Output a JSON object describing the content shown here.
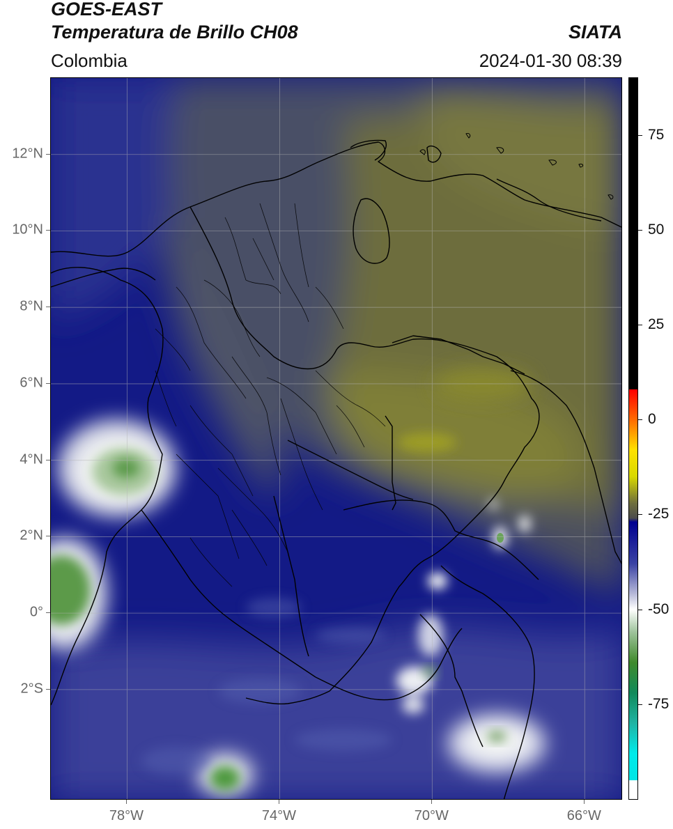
{
  "header": {
    "satellite": "GOES-EAST",
    "product": "Temperatura de Brillo CH08",
    "region": "Colombia",
    "brand": "SIATA",
    "timestamp": "2024-01-30 08:39"
  },
  "map": {
    "lon_range": [
      -80,
      -65
    ],
    "lat_range": [
      -4.9,
      14
    ],
    "lat_ticks": [
      {
        "value": 12,
        "label": "12°N"
      },
      {
        "value": 10,
        "label": "10°N"
      },
      {
        "value": 8,
        "label": "8°N"
      },
      {
        "value": 6,
        "label": "6°N"
      },
      {
        "value": 4,
        "label": "4°N"
      },
      {
        "value": 2,
        "label": "2°N"
      },
      {
        "value": 0,
        "label": "0°"
      },
      {
        "value": -2,
        "label": "2°S"
      }
    ],
    "lon_ticks": [
      {
        "value": -78,
        "label": "78°W"
      },
      {
        "value": -74,
        "label": "74°W"
      },
      {
        "value": -70,
        "label": "70°W"
      },
      {
        "value": -66,
        "label": "66°W"
      }
    ],
    "colors": {
      "navy": "#131a86",
      "blue": "#3a4199",
      "slate": "#4a4f66",
      "gray": "#555555",
      "olive": "#6d6d3e",
      "olive_light": "#7f7f38",
      "yellow": "#9c9c28",
      "white": "#f4f6f4",
      "green": "#3f8a35",
      "border": "#000000"
    }
  },
  "colorbar": {
    "range": [
      -100,
      90
    ],
    "ticks": [
      {
        "value": 75,
        "label": "75"
      },
      {
        "value": 50,
        "label": "50"
      },
      {
        "value": 25,
        "label": "25"
      },
      {
        "value": 0,
        "label": "0"
      },
      {
        "value": -25,
        "label": "-25"
      },
      {
        "value": -50,
        "label": "-50"
      },
      {
        "value": -75,
        "label": "-75"
      }
    ],
    "stops": [
      {
        "value": 90,
        "color": "#000000"
      },
      {
        "value": 8,
        "color": "#000000"
      },
      {
        "value": 7.9,
        "color": "#ff0000"
      },
      {
        "value": 0,
        "color": "#ff6a00"
      },
      {
        "value": -8,
        "color": "#ffe100"
      },
      {
        "value": -15,
        "color": "#d9d900"
      },
      {
        "value": -22,
        "color": "#6f6f3d"
      },
      {
        "value": -26,
        "color": "#4c4c4c"
      },
      {
        "value": -27,
        "color": "#000090"
      },
      {
        "value": -38,
        "color": "#3b43a4"
      },
      {
        "value": -46,
        "color": "#b8bad9"
      },
      {
        "value": -50,
        "color": "#ffffff"
      },
      {
        "value": -56,
        "color": "#9ec39b"
      },
      {
        "value": -64,
        "color": "#3f8a2b"
      },
      {
        "value": -72,
        "color": "#128a5a"
      },
      {
        "value": -80,
        "color": "#1fb3a3"
      },
      {
        "value": -88,
        "color": "#00eaea"
      },
      {
        "value": -95,
        "color": "#00e5e5"
      },
      {
        "value": -95.1,
        "color": "#ffffff"
      },
      {
        "value": -100,
        "color": "#ffffff"
      }
    ]
  }
}
